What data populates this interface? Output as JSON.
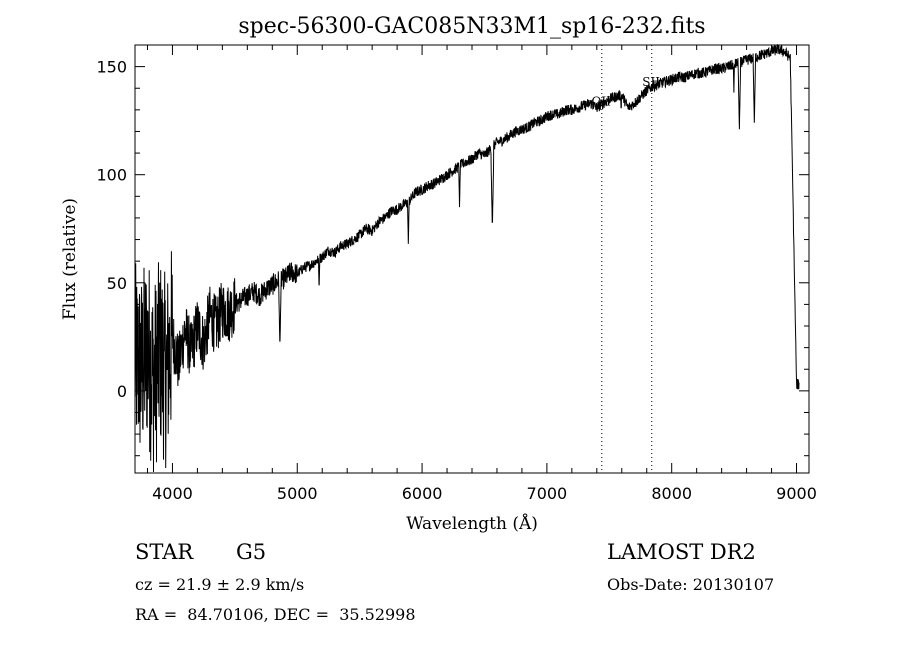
{
  "chart_data": {
    "type": "line",
    "title": "spec-56300-GAC085N33M1_sp16-232.fits",
    "xlabel": "Wavelength (Å)",
    "ylabel": "Flux (relative)",
    "xlim": [
      3700,
      9100
    ],
    "ylim": [
      -38,
      160
    ],
    "xticks": [
      4000,
      5000,
      6000,
      7000,
      8000,
      9000
    ],
    "xtick_labels": [
      "4000",
      "5000",
      "6000",
      "7000",
      "8000",
      "9000"
    ],
    "yticks": [
      0,
      50,
      100,
      150
    ],
    "ytick_labels": [
      "0",
      "50",
      "100",
      "150"
    ],
    "grid": false,
    "legend": "none",
    "line_color": "#000000",
    "annotations": [
      {
        "text": "OII",
        "x": 7435,
        "y": 132
      },
      {
        "text": "SII",
        "x": 7835,
        "y": 141
      }
    ],
    "vlines": [
      7440,
      7840
    ],
    "series": [
      {
        "x": [
          3700,
          3750,
          3800,
          3850,
          3900,
          3950,
          4000,
          4050,
          4100,
          4150,
          4200,
          4250,
          4300,
          4350,
          4400,
          4450,
          4500,
          4550,
          4600,
          4650,
          4700,
          4750,
          4800,
          4850,
          4900,
          4950,
          5000,
          5050,
          5100,
          5150,
          5200,
          5250,
          5300,
          5350,
          5400,
          5450,
          5500,
          5550,
          5600,
          5650,
          5700,
          5750,
          5800,
          5850,
          5900,
          5950,
          6000,
          6050,
          6100,
          6150,
          6200,
          6250,
          6300,
          6350,
          6400,
          6450,
          6500,
          6550,
          6600,
          6650,
          6700,
          6750,
          6800,
          6850,
          6900,
          6950,
          7000,
          7050,
          7100,
          7150,
          7200,
          7250,
          7300,
          7350,
          7400,
          7450,
          7500,
          7550,
          7600,
          7650,
          7700,
          7750,
          7800,
          7850,
          7900,
          7950,
          8000,
          8050,
          8100,
          8150,
          8200,
          8250,
          8300,
          8350,
          8400,
          8450,
          8500,
          8550,
          8600,
          8650,
          8700,
          8750,
          8800,
          8850,
          8900,
          8950,
          9000
        ],
        "y": [
          15,
          10,
          20,
          5,
          18,
          8,
          25,
          12,
          28,
          18,
          30,
          22,
          35,
          30,
          38,
          36,
          40,
          42,
          44,
          46,
          44,
          47,
          49,
          51,
          52,
          55,
          54,
          57,
          58,
          60,
          62,
          65,
          64,
          67,
          68,
          70,
          72,
          75,
          74,
          78,
          80,
          83,
          84,
          86,
          88,
          92,
          93,
          95,
          96,
          98,
          100,
          102,
          104,
          106,
          107,
          110,
          109,
          112,
          115,
          116,
          118,
          120,
          121,
          122,
          124,
          125,
          127,
          128,
          128,
          130,
          130,
          131,
          132,
          133,
          131,
          133,
          135,
          136,
          137,
          131,
          133,
          136,
          139,
          141,
          142,
          143,
          144,
          145,
          145,
          146,
          147,
          147,
          148,
          149,
          149,
          150,
          151,
          152,
          153,
          154,
          155,
          156,
          157,
          158,
          157,
          154,
          3
        ],
        "absorption_lines": [
          {
            "x": 4861,
            "y": 20
          },
          {
            "x": 5175,
            "y": 46
          },
          {
            "x": 5890,
            "y": 68
          },
          {
            "x": 6300,
            "y": 85
          },
          {
            "x": 6563,
            "y": 75
          },
          {
            "x": 7595,
            "y": 128
          },
          {
            "x": 8498,
            "y": 138
          },
          {
            "x": 8542,
            "y": 121
          },
          {
            "x": 8662,
            "y": 124
          }
        ]
      }
    ]
  },
  "info": {
    "object_class": "STAR",
    "subclass": "G5",
    "survey": "LAMOST DR2",
    "redshift": "cz = 21.9 ± 2.9 km/s",
    "obs_date": "Obs-Date: 20130107",
    "coords": "RA =  84.70106, DEC =  35.52998"
  }
}
